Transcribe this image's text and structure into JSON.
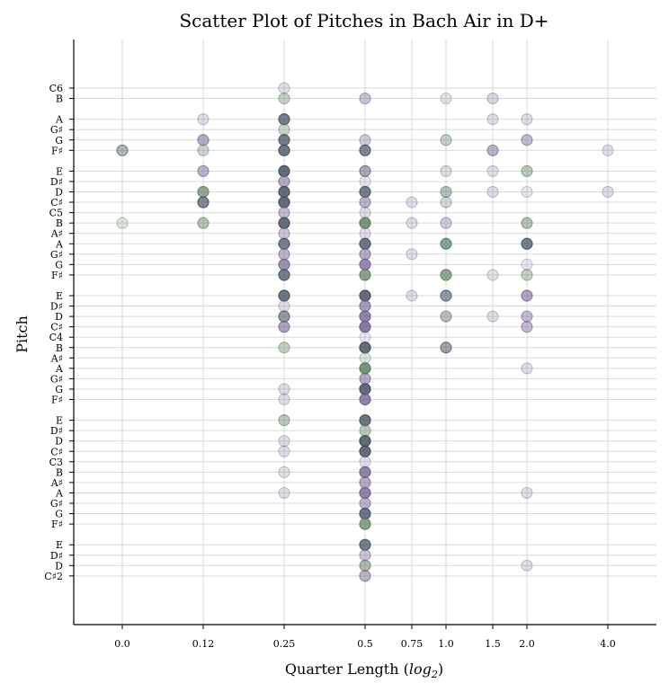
{
  "chart_data": {
    "type": "scatter",
    "title": "Scatter Plot of Pitches in Bach Air in D+",
    "xlabel_prefix": "Quarter Length (",
    "xlabel_log": "log",
    "xlabel_sub": "2",
    "xlabel_suffix": ")",
    "ylabel": "Pitch",
    "x_scale": "log2",
    "grid": true,
    "x_ticks": [
      {
        "value": 0.0,
        "label": "0.0"
      },
      {
        "value": 0.125,
        "label": "0.12"
      },
      {
        "value": 0.25,
        "label": "0.25"
      },
      {
        "value": 0.5,
        "label": "0.5"
      },
      {
        "value": 0.75,
        "label": "0.75"
      },
      {
        "value": 1.0,
        "label": "1.0"
      },
      {
        "value": 1.5,
        "label": "1.5"
      },
      {
        "value": 2.0,
        "label": "2.0"
      },
      {
        "value": 4.0,
        "label": "4.0"
      }
    ],
    "y_ticks": [
      {
        "midi": 84,
        "label": "C6"
      },
      {
        "midi": 83,
        "label": "B"
      },
      {
        "midi": 81,
        "label": "A"
      },
      {
        "midi": 80,
        "label": "G♯"
      },
      {
        "midi": 79,
        "label": "G"
      },
      {
        "midi": 78,
        "label": "F♯"
      },
      {
        "midi": 76,
        "label": "E"
      },
      {
        "midi": 75,
        "label": "D♯"
      },
      {
        "midi": 74,
        "label": "D"
      },
      {
        "midi": 73,
        "label": "C♯"
      },
      {
        "midi": 72,
        "label": "C5"
      },
      {
        "midi": 71,
        "label": "B"
      },
      {
        "midi": 70,
        "label": "A♯"
      },
      {
        "midi": 69,
        "label": "A"
      },
      {
        "midi": 68,
        "label": "G♯"
      },
      {
        "midi": 67,
        "label": "G"
      },
      {
        "midi": 66,
        "label": "F♯"
      },
      {
        "midi": 64,
        "label": "E"
      },
      {
        "midi": 63,
        "label": "D♯"
      },
      {
        "midi": 62,
        "label": "D"
      },
      {
        "midi": 61,
        "label": "C♯"
      },
      {
        "midi": 60,
        "label": "C4"
      },
      {
        "midi": 59,
        "label": "B"
      },
      {
        "midi": 58,
        "label": "A♯"
      },
      {
        "midi": 57,
        "label": "A"
      },
      {
        "midi": 56,
        "label": "G♯"
      },
      {
        "midi": 55,
        "label": "G"
      },
      {
        "midi": 54,
        "label": "F♯"
      },
      {
        "midi": 52,
        "label": "E"
      },
      {
        "midi": 51,
        "label": "D♯"
      },
      {
        "midi": 50,
        "label": "D"
      },
      {
        "midi": 49,
        "label": "C♯"
      },
      {
        "midi": 48,
        "label": "C3"
      },
      {
        "midi": 47,
        "label": "B"
      },
      {
        "midi": 46,
        "label": "A♯"
      },
      {
        "midi": 45,
        "label": "A"
      },
      {
        "midi": 44,
        "label": "G♯"
      },
      {
        "midi": 43,
        "label": "G"
      },
      {
        "midi": 42,
        "label": "F♯"
      },
      {
        "midi": 40,
        "label": "E"
      },
      {
        "midi": 39,
        "label": "D♯"
      },
      {
        "midi": 38,
        "label": "D"
      },
      {
        "midi": 37,
        "label": "C♯2"
      }
    ],
    "colors": {
      "purple": "#6b5b8a",
      "green": "#5a7a5a",
      "slate": "#3d4a5a",
      "grid": "#d9d9d9"
    },
    "points": [
      {
        "x": 0.25,
        "y": 84,
        "c": "purple",
        "a": 0.2
      },
      {
        "x": 0.25,
        "y": 83,
        "c": "green",
        "a": 0.35
      },
      {
        "x": 0.5,
        "y": 83,
        "c": "purple",
        "a": 0.35
      },
      {
        "x": 1.0,
        "y": 83,
        "c": "green",
        "a": 0.2
      },
      {
        "x": 1.5,
        "y": 83,
        "c": "purple",
        "a": 0.25
      },
      {
        "x": 0.125,
        "y": 81,
        "c": "purple",
        "a": 0.2
      },
      {
        "x": 0.25,
        "y": 81,
        "c": "slate",
        "a": 0.7
      },
      {
        "x": 1.5,
        "y": 81,
        "c": "purple",
        "a": 0.2
      },
      {
        "x": 2.0,
        "y": 81,
        "c": "purple",
        "a": 0.2
      },
      {
        "x": 0.25,
        "y": 80,
        "c": "green",
        "a": 0.3
      },
      {
        "x": 0.125,
        "y": 79,
        "c": "purple",
        "a": 0.5
      },
      {
        "x": 0.25,
        "y": 79,
        "c": "slate",
        "a": 0.7
      },
      {
        "x": 0.5,
        "y": 79,
        "c": "purple",
        "a": 0.3
      },
      {
        "x": 1.0,
        "y": 79,
        "c": "green",
        "a": 0.35
      },
      {
        "x": 2.0,
        "y": 79,
        "c": "purple",
        "a": 0.4
      },
      {
        "x": 0.0,
        "y": 78,
        "c": "slate",
        "a": 0.4
      },
      {
        "x": 0.125,
        "y": 78,
        "c": "green",
        "a": 0.3
      },
      {
        "x": 0.25,
        "y": 78,
        "c": "slate",
        "a": 0.75
      },
      {
        "x": 0.5,
        "y": 78,
        "c": "slate",
        "a": 0.65
      },
      {
        "x": 1.5,
        "y": 78,
        "c": "purple",
        "a": 0.45
      },
      {
        "x": 4.0,
        "y": 78,
        "c": "purple",
        "a": 0.2
      },
      {
        "x": 0.125,
        "y": 76,
        "c": "purple",
        "a": 0.45
      },
      {
        "x": 0.25,
        "y": 76,
        "c": "slate",
        "a": 0.8
      },
      {
        "x": 0.5,
        "y": 76,
        "c": "slate",
        "a": 0.45
      },
      {
        "x": 1.0,
        "y": 76,
        "c": "purple",
        "a": 0.2
      },
      {
        "x": 1.5,
        "y": 76,
        "c": "purple",
        "a": 0.2
      },
      {
        "x": 2.0,
        "y": 76,
        "c": "green",
        "a": 0.4
      },
      {
        "x": 0.25,
        "y": 75,
        "c": "purple",
        "a": 0.5
      },
      {
        "x": 0.5,
        "y": 75,
        "c": "purple",
        "a": 0.15
      },
      {
        "x": 0.125,
        "y": 74,
        "c": "green",
        "a": 0.65
      },
      {
        "x": 0.25,
        "y": 74,
        "c": "slate",
        "a": 0.8
      },
      {
        "x": 0.5,
        "y": 74,
        "c": "slate",
        "a": 0.7
      },
      {
        "x": 1.0,
        "y": 74,
        "c": "green",
        "a": 0.45
      },
      {
        "x": 1.5,
        "y": 74,
        "c": "purple",
        "a": 0.2
      },
      {
        "x": 2.0,
        "y": 74,
        "c": "purple",
        "a": 0.15
      },
      {
        "x": 4.0,
        "y": 74,
        "c": "purple",
        "a": 0.2
      },
      {
        "x": 0.125,
        "y": 73,
        "c": "slate",
        "a": 0.65
      },
      {
        "x": 0.25,
        "y": 73,
        "c": "slate",
        "a": 0.8
      },
      {
        "x": 0.5,
        "y": 73,
        "c": "purple",
        "a": 0.45
      },
      {
        "x": 0.75,
        "y": 73,
        "c": "purple",
        "a": 0.2
      },
      {
        "x": 1.0,
        "y": 73,
        "c": "purple",
        "a": 0.25
      },
      {
        "x": 0.25,
        "y": 72,
        "c": "purple",
        "a": 0.4
      },
      {
        "x": 0.5,
        "y": 72,
        "c": "purple",
        "a": 0.2
      },
      {
        "x": 0.0,
        "y": 71,
        "c": "green",
        "a": 0.2
      },
      {
        "x": 0.125,
        "y": 71,
        "c": "green",
        "a": 0.45
      },
      {
        "x": 0.25,
        "y": 71,
        "c": "slate",
        "a": 0.8
      },
      {
        "x": 0.5,
        "y": 71,
        "c": "green",
        "a": 0.8
      },
      {
        "x": 0.75,
        "y": 71,
        "c": "purple",
        "a": 0.2
      },
      {
        "x": 1.0,
        "y": 71,
        "c": "purple",
        "a": 0.3
      },
      {
        "x": 2.0,
        "y": 71,
        "c": "green",
        "a": 0.45
      },
      {
        "x": 0.25,
        "y": 70,
        "c": "purple",
        "a": 0.35
      },
      {
        "x": 0.5,
        "y": 70,
        "c": "purple",
        "a": 0.2
      },
      {
        "x": 0.25,
        "y": 69,
        "c": "slate",
        "a": 0.7
      },
      {
        "x": 0.5,
        "y": 69,
        "c": "slate",
        "a": 0.75
      },
      {
        "x": 1.0,
        "y": 69,
        "c": "green",
        "a": 0.7
      },
      {
        "x": 2.0,
        "y": 69,
        "c": "slate",
        "a": 0.7
      },
      {
        "x": 0.25,
        "y": 68,
        "c": "purple",
        "a": 0.45
      },
      {
        "x": 0.5,
        "y": 68,
        "c": "purple",
        "a": 0.5
      },
      {
        "x": 0.75,
        "y": 68,
        "c": "purple",
        "a": 0.2
      },
      {
        "x": 0.25,
        "y": 67,
        "c": "purple",
        "a": 0.65
      },
      {
        "x": 0.5,
        "y": 67,
        "c": "purple",
        "a": 0.7
      },
      {
        "x": 2.0,
        "y": 67,
        "c": "purple",
        "a": 0.15
      },
      {
        "x": 0.25,
        "y": 66,
        "c": "slate",
        "a": 0.7
      },
      {
        "x": 0.5,
        "y": 66,
        "c": "green",
        "a": 0.7
      },
      {
        "x": 1.0,
        "y": 66,
        "c": "green",
        "a": 0.65
      },
      {
        "x": 1.5,
        "y": 66,
        "c": "green",
        "a": 0.2
      },
      {
        "x": 2.0,
        "y": 66,
        "c": "green",
        "a": 0.35
      },
      {
        "x": 0.25,
        "y": 64,
        "c": "slate",
        "a": 0.75
      },
      {
        "x": 0.5,
        "y": 64,
        "c": "slate",
        "a": 0.8
      },
      {
        "x": 0.75,
        "y": 64,
        "c": "purple",
        "a": 0.2
      },
      {
        "x": 1.0,
        "y": 64,
        "c": "slate",
        "a": 0.55
      },
      {
        "x": 2.0,
        "y": 64,
        "c": "purple",
        "a": 0.55
      },
      {
        "x": 0.25,
        "y": 63,
        "c": "purple",
        "a": 0.2
      },
      {
        "x": 0.5,
        "y": 63,
        "c": "purple",
        "a": 0.6
      },
      {
        "x": 0.25,
        "y": 62,
        "c": "slate",
        "a": 0.55
      },
      {
        "x": 0.5,
        "y": 62,
        "c": "purple",
        "a": 0.75
      },
      {
        "x": 1.0,
        "y": 62,
        "c": "green",
        "a": 0.45
      },
      {
        "x": 1.5,
        "y": 62,
        "c": "purple",
        "a": 0.2
      },
      {
        "x": 2.0,
        "y": 62,
        "c": "purple",
        "a": 0.4
      },
      {
        "x": 0.25,
        "y": 61,
        "c": "purple",
        "a": 0.55
      },
      {
        "x": 0.5,
        "y": 61,
        "c": "purple",
        "a": 0.8
      },
      {
        "x": 2.0,
        "y": 61,
        "c": "purple",
        "a": 0.4
      },
      {
        "x": 0.5,
        "y": 60,
        "c": "purple",
        "a": 0.15
      },
      {
        "x": 0.25,
        "y": 59,
        "c": "green",
        "a": 0.35
      },
      {
        "x": 0.5,
        "y": 59,
        "c": "slate",
        "a": 0.8
      },
      {
        "x": 1.0,
        "y": 59,
        "c": "slate",
        "a": 0.5
      },
      {
        "x": 0.5,
        "y": 58,
        "c": "green",
        "a": 0.2
      },
      {
        "x": 0.5,
        "y": 57,
        "c": "green",
        "a": 0.8
      },
      {
        "x": 2.0,
        "y": 57,
        "c": "purple",
        "a": 0.2
      },
      {
        "x": 0.5,
        "y": 56,
        "c": "purple",
        "a": 0.5
      },
      {
        "x": 0.25,
        "y": 55,
        "c": "purple",
        "a": 0.2
      },
      {
        "x": 0.5,
        "y": 55,
        "c": "slate",
        "a": 0.8
      },
      {
        "x": 0.25,
        "y": 54,
        "c": "purple",
        "a": 0.2
      },
      {
        "x": 0.5,
        "y": 54,
        "c": "purple",
        "a": 0.75
      },
      {
        "x": 0.25,
        "y": 52,
        "c": "green",
        "a": 0.4
      },
      {
        "x": 0.5,
        "y": 52,
        "c": "slate",
        "a": 0.75
      },
      {
        "x": 0.5,
        "y": 51,
        "c": "green",
        "a": 0.4
      },
      {
        "x": 0.25,
        "y": 50,
        "c": "purple",
        "a": 0.2
      },
      {
        "x": 0.5,
        "y": 50,
        "c": "slate",
        "a": 0.8
      },
      {
        "x": 0.25,
        "y": 49,
        "c": "purple",
        "a": 0.2
      },
      {
        "x": 0.5,
        "y": 49,
        "c": "slate",
        "a": 0.8
      },
      {
        "x": 0.5,
        "y": 48,
        "c": "purple",
        "a": 0.2
      },
      {
        "x": 0.25,
        "y": 47,
        "c": "green",
        "a": 0.2
      },
      {
        "x": 0.5,
        "y": 47,
        "c": "purple",
        "a": 0.75
      },
      {
        "x": 0.5,
        "y": 46,
        "c": "purple",
        "a": 0.5
      },
      {
        "x": 0.25,
        "y": 45,
        "c": "purple",
        "a": 0.2
      },
      {
        "x": 0.5,
        "y": 45,
        "c": "purple",
        "a": 0.75
      },
      {
        "x": 2.0,
        "y": 45,
        "c": "purple",
        "a": 0.2
      },
      {
        "x": 0.5,
        "y": 44,
        "c": "purple",
        "a": 0.45
      },
      {
        "x": 0.5,
        "y": 43,
        "c": "slate",
        "a": 0.75
      },
      {
        "x": 0.5,
        "y": 42,
        "c": "green",
        "a": 0.7
      },
      {
        "x": 0.5,
        "y": 40,
        "c": "slate",
        "a": 0.7
      },
      {
        "x": 0.5,
        "y": 39,
        "c": "purple",
        "a": 0.35
      },
      {
        "x": 0.5,
        "y": 38,
        "c": "green",
        "a": 0.5
      },
      {
        "x": 2.0,
        "y": 38,
        "c": "purple",
        "a": 0.2
      },
      {
        "x": 0.5,
        "y": 37,
        "c": "purple",
        "a": 0.45
      }
    ]
  }
}
